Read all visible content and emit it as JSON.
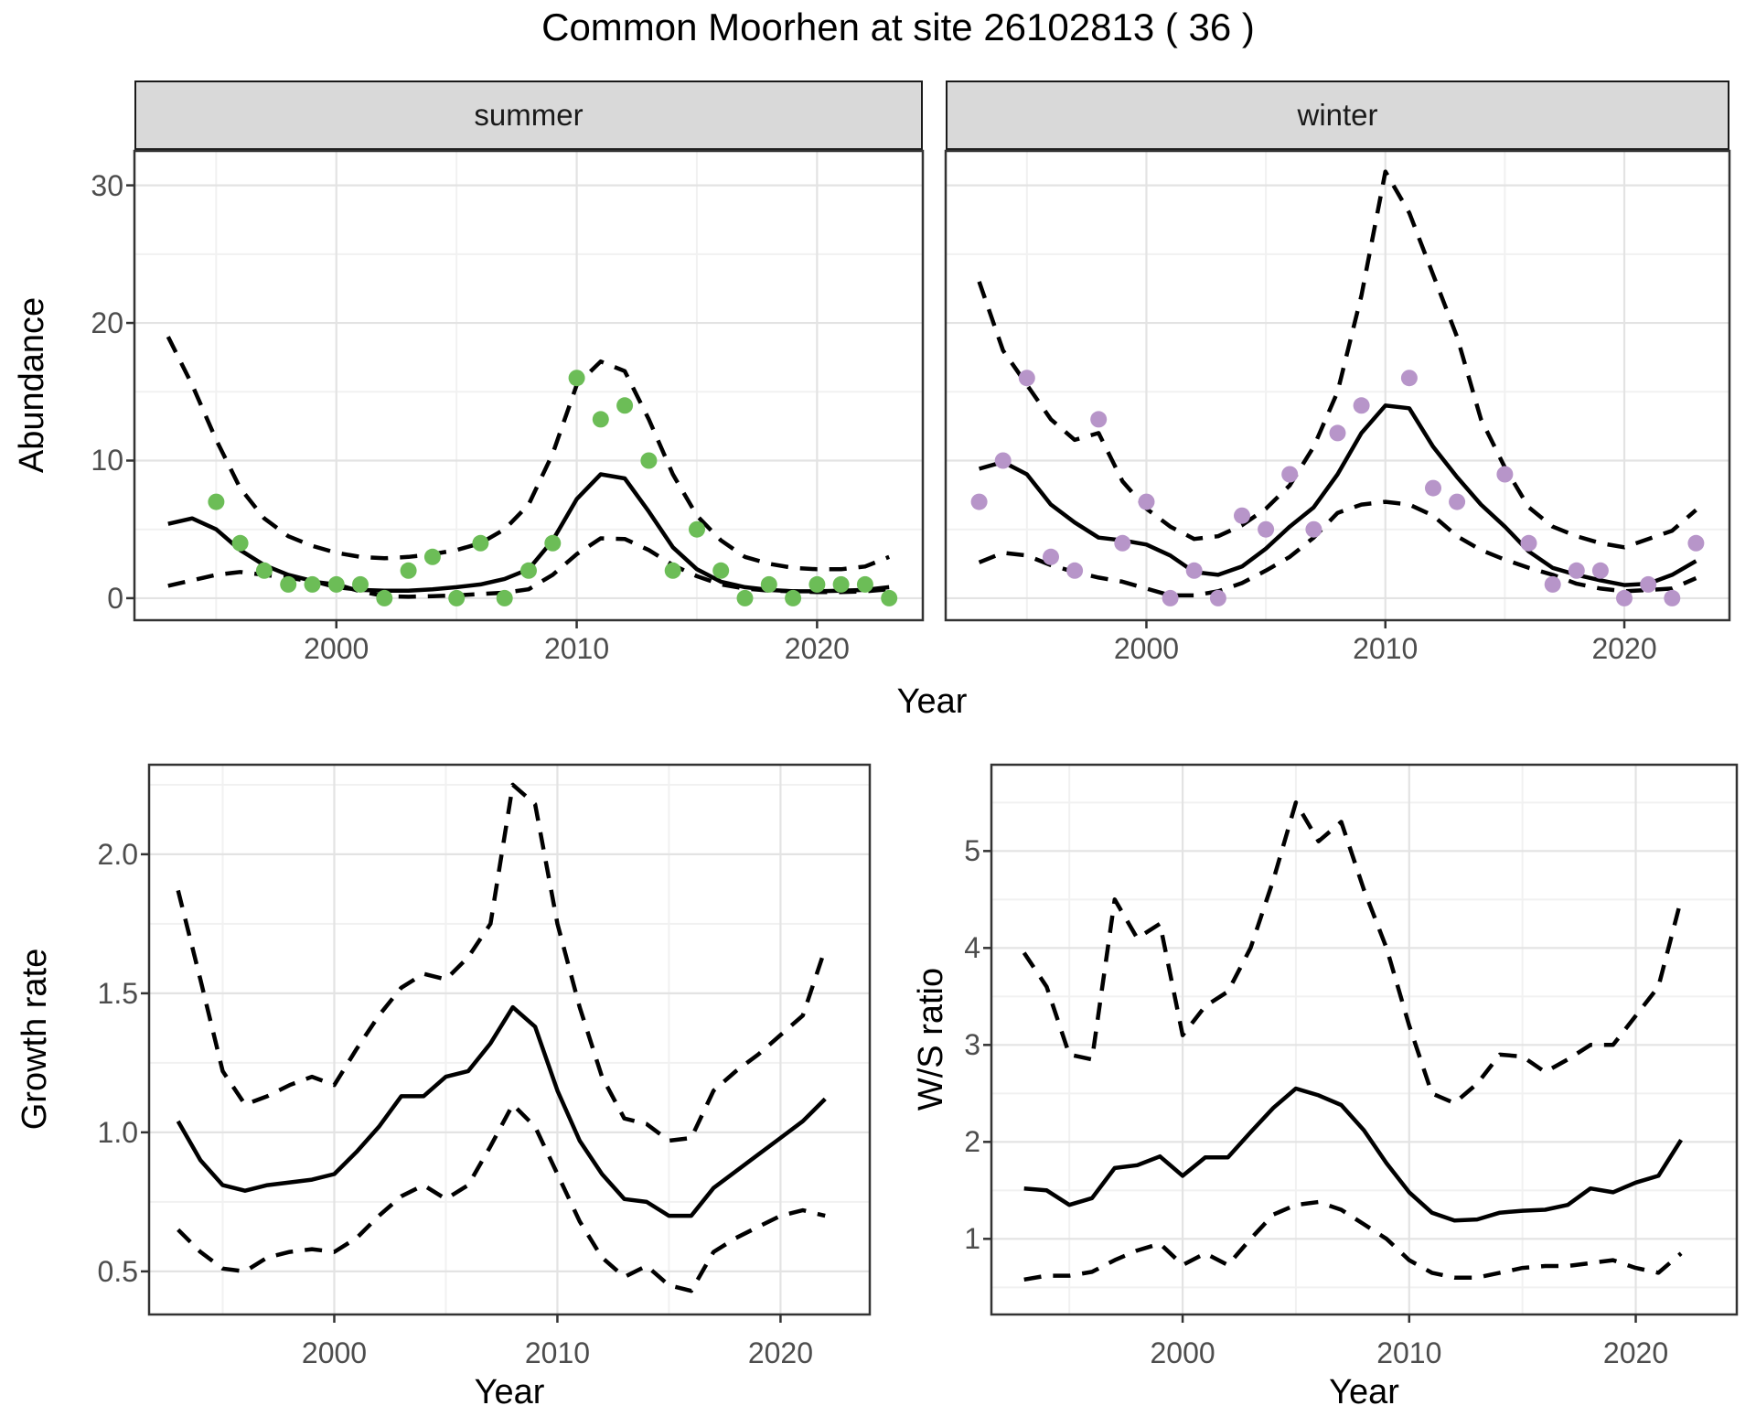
{
  "title": "Common Moorhen at site 26102813 ( 36 )",
  "labels": {
    "abundance": "Abundance",
    "year": "Year",
    "growth_rate": "Growth rate",
    "ws_ratio": "W/S ratio"
  },
  "colors": {
    "summer_points": "#6cbd57",
    "winter_points": "#b795c9",
    "fit_line": "#000000",
    "ci_line": "#000000",
    "strip_bg": "#d9d9d9",
    "grid_major": "#e3e3e3",
    "grid_minor": "#f1f1f1",
    "panel_border": "#333333",
    "tick_text": "#4d4d4d"
  },
  "chart_data": [
    {
      "type": "line+scatter",
      "facet": "summer",
      "xlabel": "Year",
      "ylabel": "Abundance",
      "xlim": [
        1991.6,
        2024.4
      ],
      "ylim": [
        -1.6,
        32.5
      ],
      "x_ticks": [
        2000,
        2010,
        2020
      ],
      "x_tick_labels": [
        "2000",
        "2010",
        "2020"
      ],
      "x_minor": [
        1995,
        2005,
        2015
      ],
      "y_ticks": [
        0,
        10,
        20,
        30
      ],
      "y_tick_labels": [
        "0",
        "10",
        "20",
        "30"
      ],
      "y_minor": [
        5,
        15,
        25
      ],
      "years": [
        1993,
        1994,
        1995,
        1996,
        1997,
        1998,
        1999,
        2000,
        2001,
        2002,
        2003,
        2004,
        2005,
        2006,
        2007,
        2008,
        2009,
        2010,
        2011,
        2012,
        2013,
        2014,
        2015,
        2016,
        2017,
        2018,
        2019,
        2020,
        2021,
        2022,
        2023
      ],
      "series": {
        "fit": [
          5.4,
          5.8,
          5.0,
          3.5,
          2.4,
          1.7,
          1.25,
          0.8,
          0.6,
          0.55,
          0.55,
          0.65,
          0.8,
          1.0,
          1.4,
          2.1,
          4.2,
          7.2,
          9.0,
          8.7,
          6.3,
          3.7,
          2.1,
          1.2,
          0.8,
          0.6,
          0.5,
          0.5,
          0.55,
          0.6,
          0.8
        ],
        "ci_upper": [
          19,
          15.5,
          11.5,
          8.0,
          5.8,
          4.5,
          3.8,
          3.3,
          3.0,
          2.9,
          3.0,
          3.2,
          3.5,
          4.0,
          5.0,
          6.8,
          10.5,
          15.5,
          17.2,
          16.5,
          13.0,
          9.0,
          6.0,
          4.2,
          3.0,
          2.5,
          2.2,
          2.1,
          2.1,
          2.3,
          3.0
        ],
        "ci_lower": [
          0.9,
          1.3,
          1.7,
          1.9,
          1.7,
          1.5,
          1.2,
          1.0,
          0.5,
          0.15,
          0.1,
          0.15,
          0.2,
          0.3,
          0.4,
          0.65,
          1.7,
          3.2,
          4.35,
          4.3,
          3.5,
          2.4,
          1.6,
          1.0,
          0.7,
          0.55,
          0.5,
          0.45,
          0.45,
          0.5,
          0.65
        ]
      },
      "points": [
        [
          1995,
          7
        ],
        [
          1996,
          4
        ],
        [
          1997,
          2
        ],
        [
          1998,
          1
        ],
        [
          1999,
          1
        ],
        [
          2000,
          1
        ],
        [
          2001,
          1
        ],
        [
          2002,
          0
        ],
        [
          2003,
          2
        ],
        [
          2004,
          3
        ],
        [
          2005,
          0
        ],
        [
          2006,
          4
        ],
        [
          2007,
          0
        ],
        [
          2008,
          2
        ],
        [
          2009,
          4
        ],
        [
          2010,
          16
        ],
        [
          2011,
          13
        ],
        [
          2012,
          14
        ],
        [
          2013,
          10
        ],
        [
          2014,
          2
        ],
        [
          2015,
          5
        ],
        [
          2016,
          2
        ],
        [
          2017,
          0
        ],
        [
          2018,
          1
        ],
        [
          2019,
          0
        ],
        [
          2020,
          1
        ],
        [
          2021,
          1
        ],
        [
          2022,
          1
        ],
        [
          2023,
          0
        ]
      ],
      "point_color": "#6cbd57"
    },
    {
      "type": "line+scatter",
      "facet": "winter",
      "xlabel": "Year",
      "ylabel": "Abundance",
      "xlim": [
        1991.6,
        2024.4
      ],
      "ylim": [
        -1.6,
        32.5
      ],
      "x_ticks": [
        2000,
        2010,
        2020
      ],
      "x_tick_labels": [
        "2000",
        "2010",
        "2020"
      ],
      "x_minor": [
        1995,
        2005,
        2015
      ],
      "y_ticks": [
        0,
        10,
        20,
        30
      ],
      "y_tick_labels": [
        "0",
        "10",
        "20",
        "30"
      ],
      "y_minor": [
        5,
        15,
        25
      ],
      "years": [
        1993,
        1994,
        1995,
        1996,
        1997,
        1998,
        1999,
        2000,
        2001,
        2002,
        2003,
        2004,
        2005,
        2006,
        2007,
        2008,
        2009,
        2010,
        2011,
        2012,
        2013,
        2014,
        2015,
        2016,
        2017,
        2018,
        2019,
        2020,
        2021,
        2022,
        2023
      ],
      "series": {
        "fit": [
          9.4,
          9.9,
          9.0,
          6.8,
          5.5,
          4.4,
          4.2,
          3.9,
          3.1,
          1.9,
          1.7,
          2.3,
          3.6,
          5.2,
          6.6,
          9.0,
          12.0,
          14.0,
          13.8,
          11.0,
          8.8,
          6.8,
          5.2,
          3.4,
          2.2,
          1.7,
          1.3,
          0.95,
          1.05,
          1.7,
          2.7
        ],
        "ci_upper": [
          23,
          18,
          15.5,
          13,
          11.5,
          12,
          8.5,
          6.5,
          5.2,
          4.3,
          4.5,
          5.3,
          6.5,
          8.2,
          11,
          15,
          22,
          31,
          28,
          23.5,
          19,
          13,
          9.5,
          6.6,
          5.2,
          4.5,
          4.0,
          3.7,
          4.3,
          4.9,
          6.4
        ],
        "ci_lower": [
          2.6,
          3.3,
          3.1,
          2.4,
          1.9,
          1.5,
          1.2,
          0.7,
          0.2,
          0.2,
          0.5,
          1.1,
          2.0,
          3.0,
          4.4,
          6.2,
          6.8,
          7.0,
          6.8,
          6.0,
          4.5,
          3.5,
          2.8,
          2.2,
          1.7,
          1.05,
          0.7,
          0.5,
          0.6,
          0.7,
          1.45
        ]
      },
      "points": [
        [
          1993,
          7
        ],
        [
          1994,
          10
        ],
        [
          1995,
          16
        ],
        [
          1996,
          3
        ],
        [
          1997,
          2
        ],
        [
          1998,
          13
        ],
        [
          1999,
          4
        ],
        [
          2000,
          7
        ],
        [
          2001,
          0
        ],
        [
          2002,
          2
        ],
        [
          2003,
          0
        ],
        [
          2004,
          6
        ],
        [
          2005,
          5
        ],
        [
          2006,
          9
        ],
        [
          2007,
          5
        ],
        [
          2008,
          12
        ],
        [
          2009,
          14
        ],
        [
          2011,
          16
        ],
        [
          2012,
          8
        ],
        [
          2013,
          7
        ],
        [
          2015,
          9
        ],
        [
          2016,
          4
        ],
        [
          2017,
          1
        ],
        [
          2018,
          2
        ],
        [
          2019,
          2
        ],
        [
          2020,
          0
        ],
        [
          2021,
          1
        ],
        [
          2022,
          0
        ],
        [
          2023,
          4
        ]
      ],
      "point_color": "#b795c9"
    },
    {
      "type": "line",
      "facet": null,
      "xlabel": "Year",
      "ylabel": "Growth rate",
      "xlim": [
        1991.7,
        2024.0
      ],
      "ylim": [
        0.345,
        2.322
      ],
      "x_ticks": [
        2000,
        2010,
        2020
      ],
      "x_tick_labels": [
        "2000",
        "2010",
        "2020"
      ],
      "x_minor": [
        1995,
        2005,
        2015
      ],
      "y_ticks": [
        0.5,
        1.0,
        1.5,
        2.0
      ],
      "y_tick_labels": [
        "0.5",
        "1.0",
        "1.5",
        "2.0"
      ],
      "y_minor": [
        0.75,
        1.25,
        1.75,
        2.25
      ],
      "years": [
        1993,
        1994,
        1995,
        1996,
        1997,
        1998,
        1999,
        2000,
        2001,
        2002,
        2003,
        2004,
        2005,
        2006,
        2007,
        2008,
        2009,
        2010,
        2011,
        2012,
        2013,
        2014,
        2015,
        2016,
        2017,
        2018,
        2019,
        2020,
        2021,
        2022
      ],
      "series": {
        "fit": [
          1.04,
          0.9,
          0.81,
          0.79,
          0.81,
          0.82,
          0.83,
          0.85,
          0.93,
          1.02,
          1.13,
          1.13,
          1.2,
          1.22,
          1.32,
          1.45,
          1.38,
          1.15,
          0.97,
          0.85,
          0.76,
          0.75,
          0.7,
          0.7,
          0.8,
          0.86,
          0.92,
          0.98,
          1.04,
          1.12
        ],
        "ci_upper": [
          1.87,
          1.55,
          1.22,
          1.1,
          1.13,
          1.17,
          1.2,
          1.17,
          1.3,
          1.42,
          1.52,
          1.57,
          1.55,
          1.63,
          1.75,
          2.25,
          2.18,
          1.75,
          1.45,
          1.2,
          1.05,
          1.03,
          0.97,
          0.98,
          1.15,
          1.22,
          1.28,
          1.35,
          1.42,
          1.66
        ],
        "ci_lower": [
          0.65,
          0.57,
          0.51,
          0.5,
          0.55,
          0.57,
          0.58,
          0.57,
          0.62,
          0.7,
          0.77,
          0.81,
          0.76,
          0.81,
          0.95,
          1.1,
          1.02,
          0.85,
          0.68,
          0.55,
          0.48,
          0.52,
          0.45,
          0.43,
          0.57,
          0.62,
          0.66,
          0.7,
          0.72,
          0.7
        ]
      },
      "points": [],
      "point_color": null
    },
    {
      "type": "line",
      "facet": null,
      "xlabel": "Year",
      "ylabel": "W/S ratio",
      "xlim": [
        1991.56,
        2024.46
      ],
      "ylim": [
        0.22,
        5.89
      ],
      "x_ticks": [
        2000,
        2010,
        2020
      ],
      "x_tick_labels": [
        "2000",
        "2010",
        "2020"
      ],
      "x_minor": [
        1995,
        2005,
        2015
      ],
      "y_ticks": [
        1,
        2,
        3,
        4,
        5
      ],
      "y_tick_labels": [
        "1",
        "2",
        "3",
        "4",
        "5"
      ],
      "y_minor": [
        0.5,
        1.5,
        2.5,
        3.5,
        4.5,
        5.5
      ],
      "years": [
        1993,
        1994,
        1995,
        1996,
        1997,
        1998,
        1999,
        2000,
        2001,
        2002,
        2003,
        2004,
        2005,
        2006,
        2007,
        2008,
        2009,
        2010,
        2011,
        2012,
        2013,
        2014,
        2015,
        2016,
        2017,
        2018,
        2019,
        2020,
        2021,
        2022
      ],
      "series": {
        "fit": [
          1.52,
          1.5,
          1.35,
          1.42,
          1.73,
          1.76,
          1.85,
          1.65,
          1.84,
          1.84,
          2.1,
          2.35,
          2.55,
          2.48,
          2.38,
          2.12,
          1.78,
          1.48,
          1.27,
          1.19,
          1.2,
          1.27,
          1.29,
          1.3,
          1.35,
          1.52,
          1.48,
          1.58,
          1.65,
          2.02
        ],
        "ci_upper": [
          3.95,
          3.6,
          2.9,
          2.85,
          4.5,
          4.1,
          4.25,
          3.1,
          3.4,
          3.55,
          4.0,
          4.7,
          5.5,
          5.1,
          5.3,
          4.6,
          4.0,
          3.2,
          2.5,
          2.4,
          2.6,
          2.9,
          2.88,
          2.72,
          2.85,
          3.0,
          3.0,
          3.3,
          3.6,
          4.5
        ],
        "ci_lower": [
          0.58,
          0.62,
          0.62,
          0.66,
          0.78,
          0.88,
          0.95,
          0.73,
          0.85,
          0.73,
          1.0,
          1.25,
          1.35,
          1.38,
          1.3,
          1.15,
          1.0,
          0.78,
          0.65,
          0.6,
          0.6,
          0.65,
          0.7,
          0.72,
          0.72,
          0.75,
          0.78,
          0.7,
          0.65,
          0.85
        ]
      },
      "points": [],
      "point_color": null
    }
  ]
}
